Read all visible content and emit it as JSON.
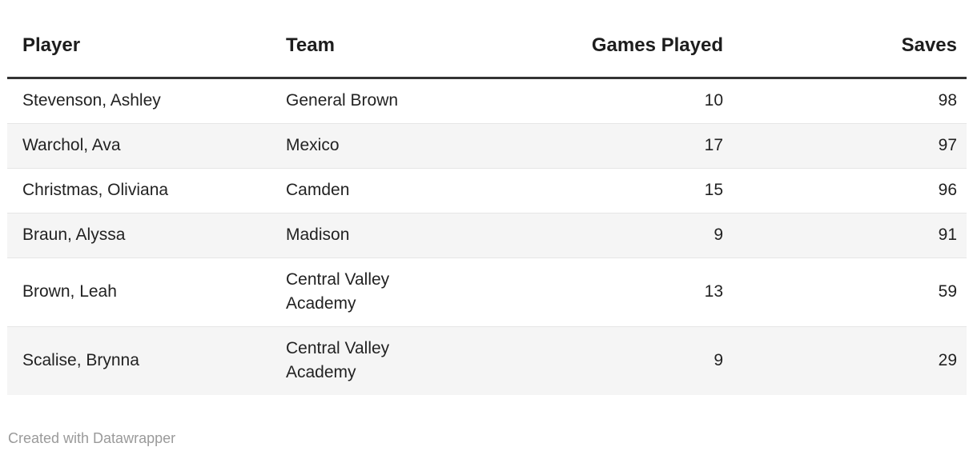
{
  "chart_data": {
    "type": "table",
    "columns": [
      "Player",
      "Team",
      "Games Played",
      "Saves"
    ],
    "rows": [
      [
        "Stevenson, Ashley",
        "General Brown",
        10,
        98
      ],
      [
        "Warchol, Ava",
        "Mexico",
        17,
        97
      ],
      [
        "Christmas, Oliviana",
        "Camden",
        15,
        96
      ],
      [
        "Braun, Alyssa",
        "Madison",
        9,
        91
      ],
      [
        "Brown, Leah",
        "Central Valley Academy",
        13,
        59
      ],
      [
        "Scalise, Brynna",
        "Central Valley Academy",
        9,
        29
      ]
    ],
    "column_alignment": [
      "left",
      "left",
      "right",
      "right"
    ],
    "zebra_striping": true,
    "title": "",
    "notes": ""
  },
  "footer": {
    "attribution": "Created with Datawrapper"
  },
  "colors": {
    "header_text": "#1d1d1d",
    "body_text": "#222222",
    "header_rule": "#333333",
    "row_stripe": "#f5f5f5",
    "row_divider": "#e6e6e6",
    "footer_text": "#9a9a9a",
    "background": "#ffffff"
  }
}
